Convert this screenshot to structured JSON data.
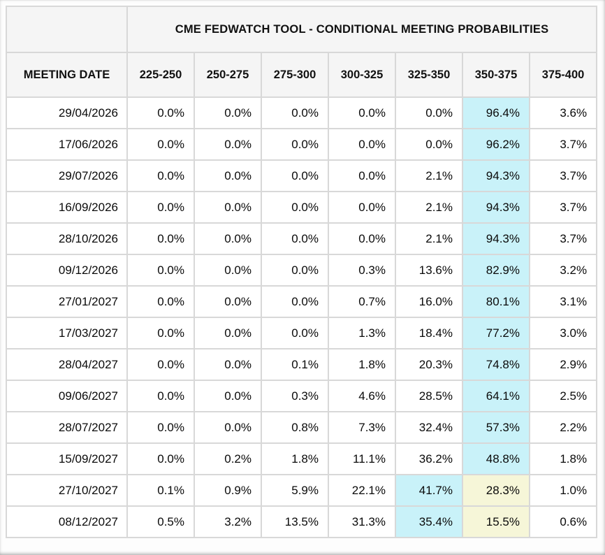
{
  "colors": {
    "highlight_cyan": "#c9f2f9",
    "highlight_yellow": "#f6f6d8",
    "header_bg": "#f5f5f5",
    "border": "#d8d8d8"
  },
  "chart_data": {
    "type": "table",
    "title": "CME FEDWATCH TOOL - CONDITIONAL MEETING PROBABILITIES",
    "columns": [
      "MEETING DATE",
      "225-250",
      "250-275",
      "275-300",
      "300-325",
      "325-350",
      "350-375",
      "375-400"
    ],
    "rows": [
      {
        "date": "29/04/2026",
        "values": [
          "0.0%",
          "0.0%",
          "0.0%",
          "0.0%",
          "0.0%",
          "96.4%",
          "3.6%"
        ],
        "highlights": [
          "",
          "",
          "",
          "",
          "",
          "cyan",
          ""
        ]
      },
      {
        "date": "17/06/2026",
        "values": [
          "0.0%",
          "0.0%",
          "0.0%",
          "0.0%",
          "0.0%",
          "96.2%",
          "3.7%"
        ],
        "highlights": [
          "",
          "",
          "",
          "",
          "",
          "cyan",
          ""
        ]
      },
      {
        "date": "29/07/2026",
        "values": [
          "0.0%",
          "0.0%",
          "0.0%",
          "0.0%",
          "2.1%",
          "94.3%",
          "3.7%"
        ],
        "highlights": [
          "",
          "",
          "",
          "",
          "",
          "cyan",
          ""
        ]
      },
      {
        "date": "16/09/2026",
        "values": [
          "0.0%",
          "0.0%",
          "0.0%",
          "0.0%",
          "2.1%",
          "94.3%",
          "3.7%"
        ],
        "highlights": [
          "",
          "",
          "",
          "",
          "",
          "cyan",
          ""
        ]
      },
      {
        "date": "28/10/2026",
        "values": [
          "0.0%",
          "0.0%",
          "0.0%",
          "0.0%",
          "2.1%",
          "94.3%",
          "3.7%"
        ],
        "highlights": [
          "",
          "",
          "",
          "",
          "",
          "cyan",
          ""
        ]
      },
      {
        "date": "09/12/2026",
        "values": [
          "0.0%",
          "0.0%",
          "0.0%",
          "0.3%",
          "13.6%",
          "82.9%",
          "3.2%"
        ],
        "highlights": [
          "",
          "",
          "",
          "",
          "",
          "cyan",
          ""
        ]
      },
      {
        "date": "27/01/2027",
        "values": [
          "0.0%",
          "0.0%",
          "0.0%",
          "0.7%",
          "16.0%",
          "80.1%",
          "3.1%"
        ],
        "highlights": [
          "",
          "",
          "",
          "",
          "",
          "cyan",
          ""
        ]
      },
      {
        "date": "17/03/2027",
        "values": [
          "0.0%",
          "0.0%",
          "0.0%",
          "1.3%",
          "18.4%",
          "77.2%",
          "3.0%"
        ],
        "highlights": [
          "",
          "",
          "",
          "",
          "",
          "cyan",
          ""
        ]
      },
      {
        "date": "28/04/2027",
        "values": [
          "0.0%",
          "0.0%",
          "0.1%",
          "1.8%",
          "20.3%",
          "74.8%",
          "2.9%"
        ],
        "highlights": [
          "",
          "",
          "",
          "",
          "",
          "cyan",
          ""
        ]
      },
      {
        "date": "09/06/2027",
        "values": [
          "0.0%",
          "0.0%",
          "0.3%",
          "4.6%",
          "28.5%",
          "64.1%",
          "2.5%"
        ],
        "highlights": [
          "",
          "",
          "",
          "",
          "",
          "cyan",
          ""
        ]
      },
      {
        "date": "28/07/2027",
        "values": [
          "0.0%",
          "0.0%",
          "0.8%",
          "7.3%",
          "32.4%",
          "57.3%",
          "2.2%"
        ],
        "highlights": [
          "",
          "",
          "",
          "",
          "",
          "cyan",
          ""
        ]
      },
      {
        "date": "15/09/2027",
        "values": [
          "0.0%",
          "0.2%",
          "1.8%",
          "11.1%",
          "36.2%",
          "48.8%",
          "1.8%"
        ],
        "highlights": [
          "",
          "",
          "",
          "",
          "",
          "cyan",
          ""
        ]
      },
      {
        "date": "27/10/2027",
        "values": [
          "0.1%",
          "0.9%",
          "5.9%",
          "22.1%",
          "41.7%",
          "28.3%",
          "1.0%"
        ],
        "highlights": [
          "",
          "",
          "",
          "",
          "cyan",
          "yellow",
          ""
        ]
      },
      {
        "date": "08/12/2027",
        "values": [
          "0.5%",
          "3.2%",
          "13.5%",
          "31.3%",
          "35.4%",
          "15.5%",
          "0.6%"
        ],
        "highlights": [
          "",
          "",
          "",
          "",
          "cyan",
          "yellow",
          ""
        ]
      }
    ]
  }
}
